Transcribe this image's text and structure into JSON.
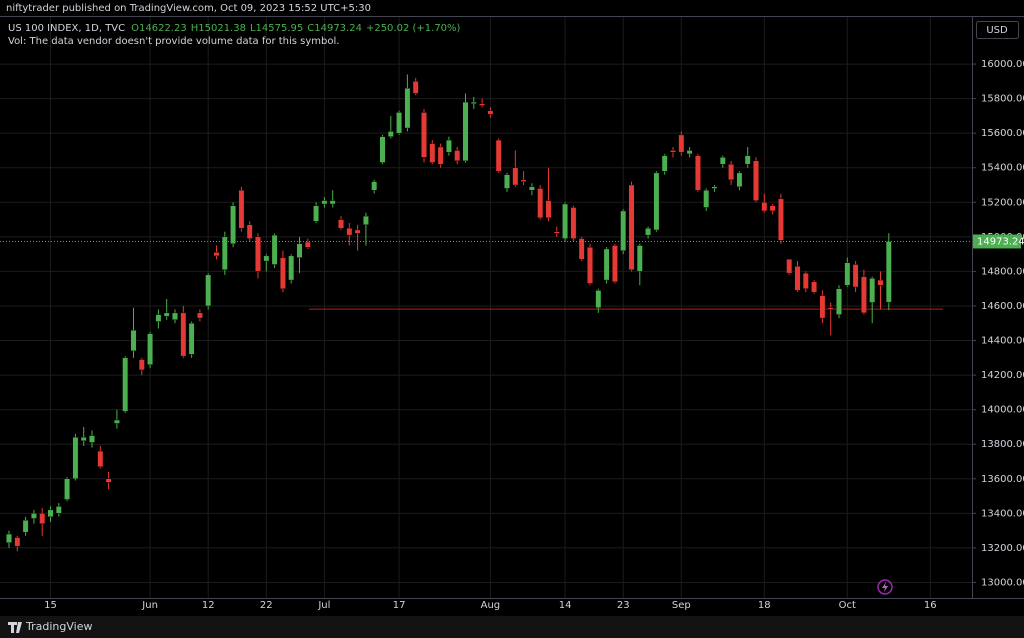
{
  "header": {
    "publisher": "niftytrader published on TradingView.com, Oct 09, 2023 15:52 UTC+5:30",
    "brand": "TradingView"
  },
  "chart_data": {
    "type": "candlestick",
    "title": "US 100 INDEX, 1D, TVC",
    "legend_values": [
      "O14622.23",
      "H15021.38",
      "L14575.95",
      "C14973.24",
      "+250.02 (+1.70%)"
    ],
    "subtitle": "Vol: The data vendor doesn't provide volume data for this symbol.",
    "currency": "USD",
    "up_color": "#4caf50",
    "down_color": "#e53935",
    "grid": true,
    "ylim": [
      12910,
      16255
    ],
    "yticks": [
      {
        "value": 13000,
        "label": "13000.00"
      },
      {
        "value": 13200,
        "label": "13200.00"
      },
      {
        "value": 13400,
        "label": "13400.00"
      },
      {
        "value": 13600,
        "label": "13600.00"
      },
      {
        "value": 13800,
        "label": "13800.00"
      },
      {
        "value": 14000,
        "label": "14000.00"
      },
      {
        "value": 14200,
        "label": "14200.00"
      },
      {
        "value": 14400,
        "label": "14400.00"
      },
      {
        "value": 14600,
        "label": "14600.00"
      },
      {
        "value": 14800,
        "label": "14800.00"
      },
      {
        "value": 15000,
        "label": "15000.00"
      },
      {
        "value": 15200,
        "label": "15200.00"
      },
      {
        "value": 15400,
        "label": "15400.00"
      },
      {
        "value": 15600,
        "label": "15600.00"
      },
      {
        "value": 15800,
        "label": "15800.00"
      },
      {
        "value": 16000,
        "label": "16000.00"
      }
    ],
    "hlines": [
      {
        "value": 14582,
        "color": "#b71c1c"
      }
    ],
    "categories": [
      null,
      null,
      null,
      null,
      null,
      "15",
      null,
      null,
      null,
      null,
      null,
      null,
      null,
      null,
      null,
      null,
      null,
      "Jun",
      null,
      null,
      null,
      null,
      null,
      null,
      "12",
      null,
      null,
      null,
      null,
      null,
      null,
      "22",
      null,
      null,
      null,
      null,
      null,
      null,
      "Jul",
      null,
      null,
      null,
      null,
      null,
      null,
      null,
      null,
      "17",
      null,
      null,
      null,
      null,
      null,
      null,
      null,
      null,
      null,
      null,
      "Aug",
      null,
      null,
      null,
      null,
      null,
      null,
      null,
      null,
      "14",
      null,
      null,
      null,
      null,
      null,
      null,
      "23",
      null,
      null,
      null,
      null,
      null,
      null,
      "Sep",
      null,
      null,
      null,
      null,
      null,
      null,
      null,
      null,
      null,
      "18",
      null,
      null,
      null,
      null,
      null,
      null,
      null,
      null,
      null,
      "Oct",
      null,
      null,
      null,
      null,
      null,
      null,
      null,
      null,
      null,
      "16",
      null,
      null,
      null,
      null,
      null
    ],
    "open": [
      13230,
      13260,
      13290,
      13370,
      13400,
      13380,
      13400,
      13480,
      13600,
      13820,
      13810,
      13760,
      13600,
      13920,
      13990,
      14340,
      14290,
      14260,
      14510,
      14540,
      14520,
      14560,
      14320,
      14560,
      14600,
      14910,
      14810,
      14960,
      15270,
      15070,
      15000,
      14860,
      14840,
      14880,
      14750,
      14880,
      14970,
      15090,
      15190,
      15190,
      15100,
      15050,
      15040,
      15070,
      15270,
      15430,
      15580,
      15600,
      15630,
      15900,
      15720,
      15540,
      15520,
      15490,
      15500,
      15440,
      15770,
      15770,
      15730,
      15560,
      15280,
      15400,
      15330,
      15270,
      15280,
      15210,
      15030,
      14990,
      15170,
      14990,
      14940,
      14590,
      14750,
      14950,
      14920,
      15300,
      14800,
      15010,
      15040,
      15380,
      15500,
      15590,
      15480,
      15470,
      15170,
      15280,
      15420,
      15420,
      15290,
      15420,
      15440,
      15200,
      15180,
      15220,
      14870,
      14830,
      14790,
      14740,
      14660,
      14590,
      14550,
      14720,
      14840,
      14770,
      14620,
      14750,
      14622.23,
      null,
      null,
      null,
      null,
      null,
      null,
      null,
      null,
      null,
      null
    ],
    "high": [
      13300,
      13270,
      13380,
      13420,
      13430,
      13440,
      13460,
      13610,
      13860,
      13900,
      13880,
      13790,
      13640,
      14000,
      14310,
      14590,
      14300,
      14450,
      14580,
      14640,
      14580,
      14600,
      14510,
      14580,
      14790,
      14950,
      15030,
      15200,
      15290,
      15090,
      15020,
      14900,
      15020,
      14920,
      14900,
      15000,
      14990,
      15200,
      15230,
      15270,
      15120,
      15080,
      15070,
      15140,
      15330,
      15590,
      15700,
      15730,
      15940,
      15920,
      15740,
      15560,
      15540,
      15580,
      15520,
      15830,
      15810,
      15800,
      15750,
      15570,
      15370,
      15500,
      15380,
      15310,
      15300,
      15400,
      15060,
      15200,
      15180,
      15000,
      14960,
      14700,
      14940,
      14960,
      15160,
      15320,
      14960,
      15060,
      15380,
      15480,
      15520,
      15610,
      15520,
      15480,
      15280,
      15300,
      15470,
      15440,
      15380,
      15520,
      15460,
      15250,
      15190,
      15250,
      14870,
      14860,
      14800,
      14750,
      14690,
      14620,
      14720,
      14880,
      14860,
      14810,
      14770,
      14800,
      15021.38,
      null,
      null,
      null,
      null,
      null,
      null,
      null,
      null,
      null,
      null
    ],
    "low": [
      13200,
      13180,
      13270,
      13340,
      13270,
      13350,
      13380,
      13470,
      13590,
      13790,
      13780,
      13660,
      13540,
      13890,
      13980,
      14300,
      14200,
      14240,
      14470,
      14520,
      14500,
      14300,
      14300,
      14510,
      14580,
      14870,
      14780,
      14940,
      15030,
      14970,
      14760,
      14800,
      14820,
      14680,
      14730,
      14790,
      14930,
      15080,
      15170,
      15170,
      15040,
      14950,
      14920,
      14950,
      15250,
      15420,
      15570,
      15590,
      15610,
      15820,
      15430,
      15420,
      15400,
      15470,
      15420,
      15430,
      15740,
      15750,
      15690,
      15370,
      15260,
      15290,
      15300,
      15240,
      15100,
      15090,
      15000,
      14970,
      14970,
      14860,
      14720,
      14560,
      14730,
      14730,
      14900,
      14800,
      14720,
      14990,
      15030,
      15360,
      15460,
      15470,
      15460,
      15260,
      15150,
      15260,
      15400,
      15300,
      15270,
      15400,
      15200,
      15140,
      15130,
      14960,
      14780,
      14680,
      14680,
      14670,
      14500,
      14430,
      14530,
      14710,
      14680,
      14550,
      14500,
      14580,
      14575.95,
      null,
      null,
      null,
      null,
      null,
      null,
      null,
      null,
      null,
      null
    ],
    "close": [
      13280,
      13210,
      13360,
      13400,
      13340,
      13420,
      13440,
      13600,
      13840,
      13840,
      13850,
      13670,
      13580,
      13940,
      14300,
      14460,
      14230,
      14440,
      14550,
      14560,
      14560,
      14310,
      14500,
      14530,
      14780,
      14890,
      15000,
      15180,
      15050,
      14990,
      14800,
      14890,
      15010,
      14700,
      14890,
      14960,
      14940,
      15180,
      15210,
      15210,
      15050,
      15010,
      15020,
      15120,
      15320,
      15580,
      15610,
      15720,
      15860,
      15830,
      15460,
      15430,
      15420,
      15560,
      15440,
      15780,
      15780,
      15760,
      15710,
      15380,
      15360,
      15300,
      15320,
      15290,
      15110,
      15110,
      15020,
      15190,
      14990,
      14870,
      14730,
      14690,
      14930,
      14740,
      15150,
      14810,
      14950,
      15050,
      15370,
      15470,
      15490,
      15490,
      15500,
      15270,
      15270,
      15290,
      15460,
      15330,
      15370,
      15470,
      15210,
      15150,
      15150,
      14980,
      14790,
      14690,
      14700,
      14680,
      14530,
      14580,
      14700,
      14850,
      14710,
      14560,
      14760,
      14720,
      14973.24,
      null,
      null,
      null,
      null,
      null,
      null,
      null,
      null,
      null,
      null
    ]
  }
}
